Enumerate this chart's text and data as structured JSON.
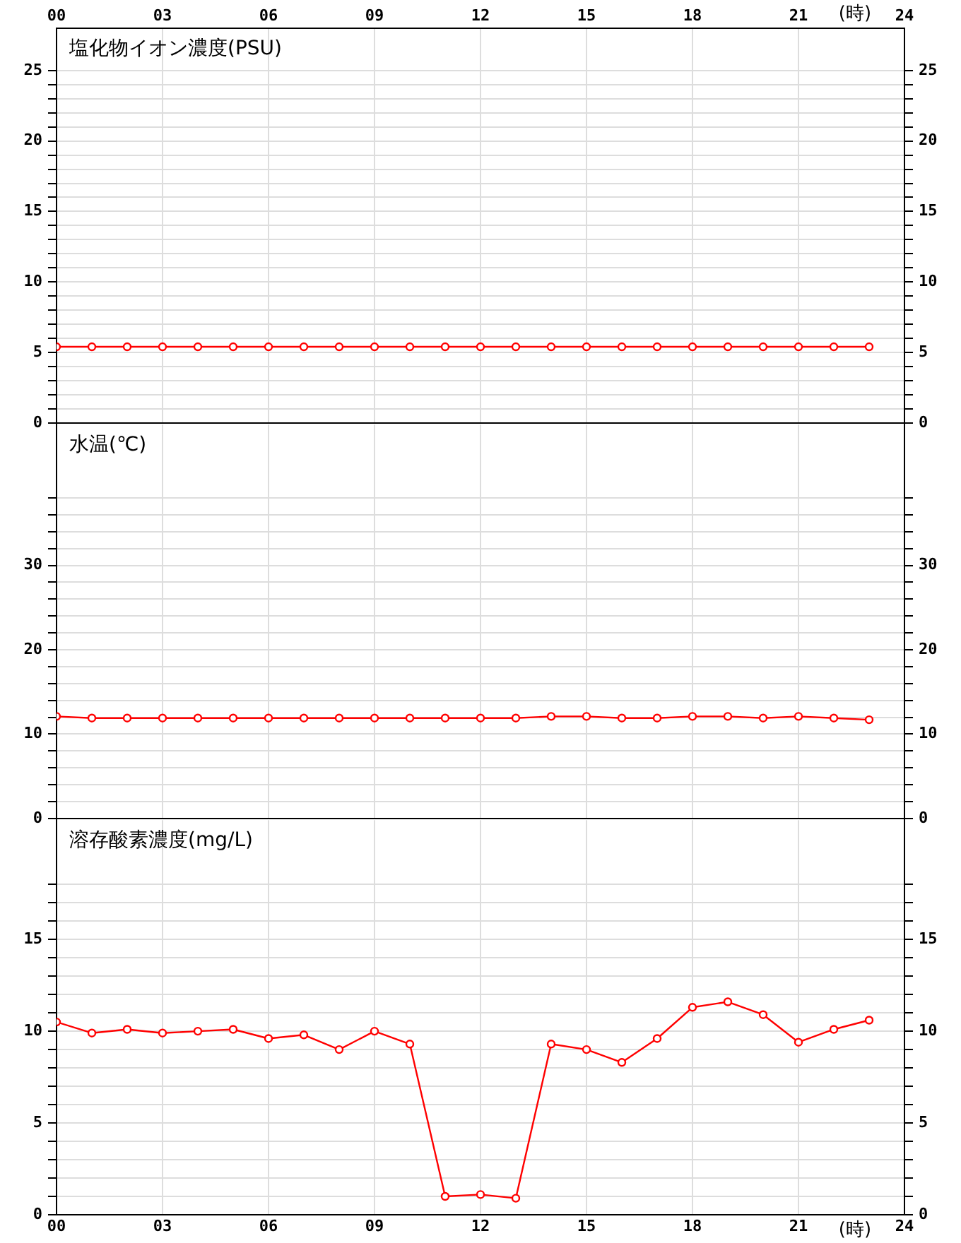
{
  "chart_data": [
    {
      "type": "line",
      "title": "塩化物イオン濃度(PSU)",
      "x2label": "(時)",
      "tick_labels": "y",
      "grid": true,
      "marker": "circle",
      "line_style": "solid",
      "x": [
        0,
        1,
        2,
        3,
        4,
        5,
        6,
        7,
        8,
        9,
        10,
        11,
        12,
        13,
        14,
        15,
        16,
        17,
        18,
        19,
        20,
        21,
        22,
        23
      ],
      "series": [
        {
          "color": "#ff0000",
          "values": [
            5.4,
            5.4,
            5.4,
            5.4,
            5.4,
            5.4,
            5.4,
            5.4,
            5.4,
            5.4,
            5.4,
            5.4,
            5.4,
            5.4,
            5.4,
            5.4,
            5.4,
            5.4,
            5.4,
            5.4,
            5.4,
            5.4,
            5.4,
            5.4
          ]
        }
      ],
      "xlim": [
        0,
        24
      ],
      "xticks": [
        {
          "value": 0,
          "label": null
        },
        {
          "value": 3,
          "label": null
        },
        {
          "value": 6,
          "label": null
        },
        {
          "value": 9,
          "label": null
        },
        {
          "value": 12,
          "label": null
        },
        {
          "value": 15,
          "label": null
        },
        {
          "value": 18,
          "label": null
        },
        {
          "value": 21,
          "label": null
        },
        {
          "value": 24,
          "label": null
        }
      ],
      "x2lim": [
        0,
        24
      ],
      "x2ticks": [
        {
          "value": 0,
          "label": "00"
        },
        {
          "value": 3,
          "label": "03"
        },
        {
          "value": 6,
          "label": "06"
        },
        {
          "value": 9,
          "label": "09"
        },
        12,
        15,
        18,
        21,
        24
      ],
      "ylim": [
        0,
        28
      ],
      "yticks": [
        0,
        {
          "value": 1,
          "label": null
        },
        {
          "value": 2,
          "label": null
        },
        {
          "value": 3,
          "label": null
        },
        {
          "value": 4,
          "label": null
        },
        5,
        {
          "value": 6,
          "label": null
        },
        {
          "value": 7,
          "label": null
        },
        {
          "value": 8,
          "label": null
        },
        {
          "value": 9,
          "label": null
        },
        10,
        {
          "value": 11,
          "label": null
        },
        {
          "value": 12,
          "label": null
        },
        {
          "value": 13,
          "label": null
        },
        {
          "value": 14,
          "label": null
        },
        15,
        {
          "value": 16,
          "label": null
        },
        {
          "value": 17,
          "label": null
        },
        {
          "value": 18,
          "label": null
        },
        {
          "value": 19,
          "label": null
        },
        20,
        {
          "value": 21,
          "label": null
        },
        {
          "value": 22,
          "label": null
        },
        {
          "value": 23,
          "label": null
        },
        {
          "value": 24,
          "label": null
        },
        25
      ],
      "y2lim": [
        0,
        28
      ],
      "y2ticks": [
        0,
        {
          "value": 1,
          "label": null
        },
        {
          "value": 2,
          "label": null
        },
        {
          "value": 3,
          "label": null
        },
        {
          "value": 4,
          "label": null
        },
        5,
        {
          "value": 6,
          "label": null
        },
        {
          "value": 7,
          "label": null
        },
        {
          "value": 8,
          "label": null
        },
        {
          "value": 9,
          "label": null
        },
        10,
        {
          "value": 11,
          "label": null
        },
        {
          "value": 12,
          "label": null
        },
        {
          "value": 13,
          "label": null
        },
        {
          "value": 14,
          "label": null
        },
        15,
        {
          "value": 16,
          "label": null
        },
        {
          "value": 17,
          "label": null
        },
        {
          "value": 18,
          "label": null
        },
        {
          "value": 19,
          "label": null
        },
        20,
        {
          "value": 21,
          "label": null
        },
        {
          "value": 22,
          "label": null
        },
        {
          "value": 23,
          "label": null
        },
        {
          "value": 24,
          "label": null
        },
        25
      ]
    },
    {
      "type": "line",
      "title": "水温(℃)",
      "tick_labels": "y",
      "grid": true,
      "marker": "circle",
      "line_style": "solid",
      "x": [
        0,
        1,
        2,
        3,
        4,
        5,
        6,
        7,
        8,
        9,
        10,
        11,
        12,
        13,
        14,
        15,
        16,
        17,
        18,
        19,
        20,
        21,
        22,
        23
      ],
      "series": [
        {
          "color": "#ff0000",
          "values": [
            12.1,
            11.9,
            11.9,
            11.9,
            11.9,
            11.9,
            11.9,
            11.9,
            11.9,
            11.9,
            11.9,
            11.9,
            11.9,
            11.9,
            12.1,
            12.1,
            11.9,
            11.9,
            12.1,
            12.1,
            11.9,
            12.1,
            11.9,
            11.7
          ]
        }
      ],
      "xlim": [
        0,
        24
      ],
      "xticks": [
        {
          "value": 0,
          "label": null
        },
        {
          "value": 3,
          "label": null
        },
        {
          "value": 6,
          "label": null
        },
        {
          "value": 9,
          "label": null
        },
        {
          "value": 12,
          "label": null
        },
        {
          "value": 15,
          "label": null
        },
        {
          "value": 18,
          "label": null
        },
        {
          "value": 21,
          "label": null
        },
        {
          "value": 24,
          "label": null
        }
      ],
      "ylim": [
        0,
        46.7
      ],
      "yticks": [
        0,
        {
          "value": 2,
          "label": null
        },
        {
          "value": 4,
          "label": null
        },
        {
          "value": 6,
          "label": null
        },
        {
          "value": 8,
          "label": null
        },
        10,
        {
          "value": 12,
          "label": null
        },
        {
          "value": 14,
          "label": null
        },
        {
          "value": 16,
          "label": null
        },
        {
          "value": 18,
          "label": null
        },
        20,
        {
          "value": 22,
          "label": null
        },
        {
          "value": 24,
          "label": null
        },
        {
          "value": 26,
          "label": null
        },
        {
          "value": 28,
          "label": null
        },
        30,
        {
          "value": 32,
          "label": null
        },
        {
          "value": 34,
          "label": null
        },
        {
          "value": 36,
          "label": null
        },
        {
          "value": 38,
          "label": null
        }
      ],
      "y2lim": [
        0,
        46.7
      ],
      "y2ticks": [
        0,
        {
          "value": 2,
          "label": null
        },
        {
          "value": 4,
          "label": null
        },
        {
          "value": 6,
          "label": null
        },
        {
          "value": 8,
          "label": null
        },
        10,
        {
          "value": 12,
          "label": null
        },
        {
          "value": 14,
          "label": null
        },
        {
          "value": 16,
          "label": null
        },
        {
          "value": 18,
          "label": null
        },
        20,
        {
          "value": 22,
          "label": null
        },
        {
          "value": 24,
          "label": null
        },
        {
          "value": 26,
          "label": null
        },
        {
          "value": 28,
          "label": null
        },
        30,
        {
          "value": 32,
          "label": null
        },
        {
          "value": 34,
          "label": null
        },
        {
          "value": 36,
          "label": null
        },
        {
          "value": 38,
          "label": null
        }
      ]
    },
    {
      "type": "line",
      "title": "溶存酸素濃度(mg/L)",
      "xlabel": "(時)",
      "grid": true,
      "marker": "circle",
      "line_style": "solid",
      "x": [
        0,
        1,
        2,
        3,
        4,
        5,
        6,
        7,
        8,
        9,
        10,
        11,
        12,
        13,
        14,
        15,
        16,
        17,
        18,
        19,
        20,
        21,
        22,
        23
      ],
      "series": [
        {
          "color": "#ff0000",
          "values": [
            10.5,
            9.9,
            10.1,
            9.9,
            10.0,
            10.1,
            9.6,
            9.8,
            9.0,
            10.0,
            9.3,
            1.0,
            1.1,
            0.9,
            9.3,
            9.0,
            8.3,
            9.6,
            11.3,
            11.6,
            10.9,
            9.4,
            10.1,
            10.6
          ]
        }
      ],
      "xlim": [
        0,
        24
      ],
      "xticks": [
        {
          "value": 0,
          "label": "00"
        },
        {
          "value": 3,
          "label": "03"
        },
        {
          "value": 6,
          "label": "06"
        },
        {
          "value": 9,
          "label": "09"
        },
        12,
        15,
        18,
        21,
        24
      ],
      "ylim": [
        0,
        21.5
      ],
      "yticks": [
        0,
        {
          "value": 1,
          "label": null
        },
        {
          "value": 2,
          "label": null
        },
        {
          "value": 3,
          "label": null
        },
        {
          "value": 4,
          "label": null
        },
        5,
        {
          "value": 6,
          "label": null
        },
        {
          "value": 7,
          "label": null
        },
        {
          "value": 8,
          "label": null
        },
        {
          "value": 9,
          "label": null
        },
        10,
        {
          "value": 11,
          "label": null
        },
        {
          "value": 12,
          "label": null
        },
        {
          "value": 13,
          "label": null
        },
        {
          "value": 14,
          "label": null
        },
        15,
        {
          "value": 16,
          "label": null
        },
        {
          "value": 17,
          "label": null
        },
        {
          "value": 18,
          "label": null
        }
      ],
      "y2lim": [
        0,
        21.5
      ],
      "y2ticks": [
        0,
        {
          "value": 1,
          "label": null
        },
        {
          "value": 2,
          "label": null
        },
        {
          "value": 3,
          "label": null
        },
        {
          "value": 4,
          "label": null
        },
        5,
        {
          "value": 6,
          "label": null
        },
        {
          "value": 7,
          "label": null
        },
        {
          "value": 8,
          "label": null
        },
        {
          "value": 9,
          "label": null
        },
        10,
        {
          "value": 11,
          "label": null
        },
        {
          "value": 12,
          "label": null
        },
        {
          "value": 13,
          "label": null
        },
        {
          "value": 14,
          "label": null
        },
        15,
        {
          "value": 16,
          "label": null
        },
        {
          "value": 17,
          "label": null
        },
        {
          "value": 18,
          "label": null
        }
      ]
    }
  ]
}
